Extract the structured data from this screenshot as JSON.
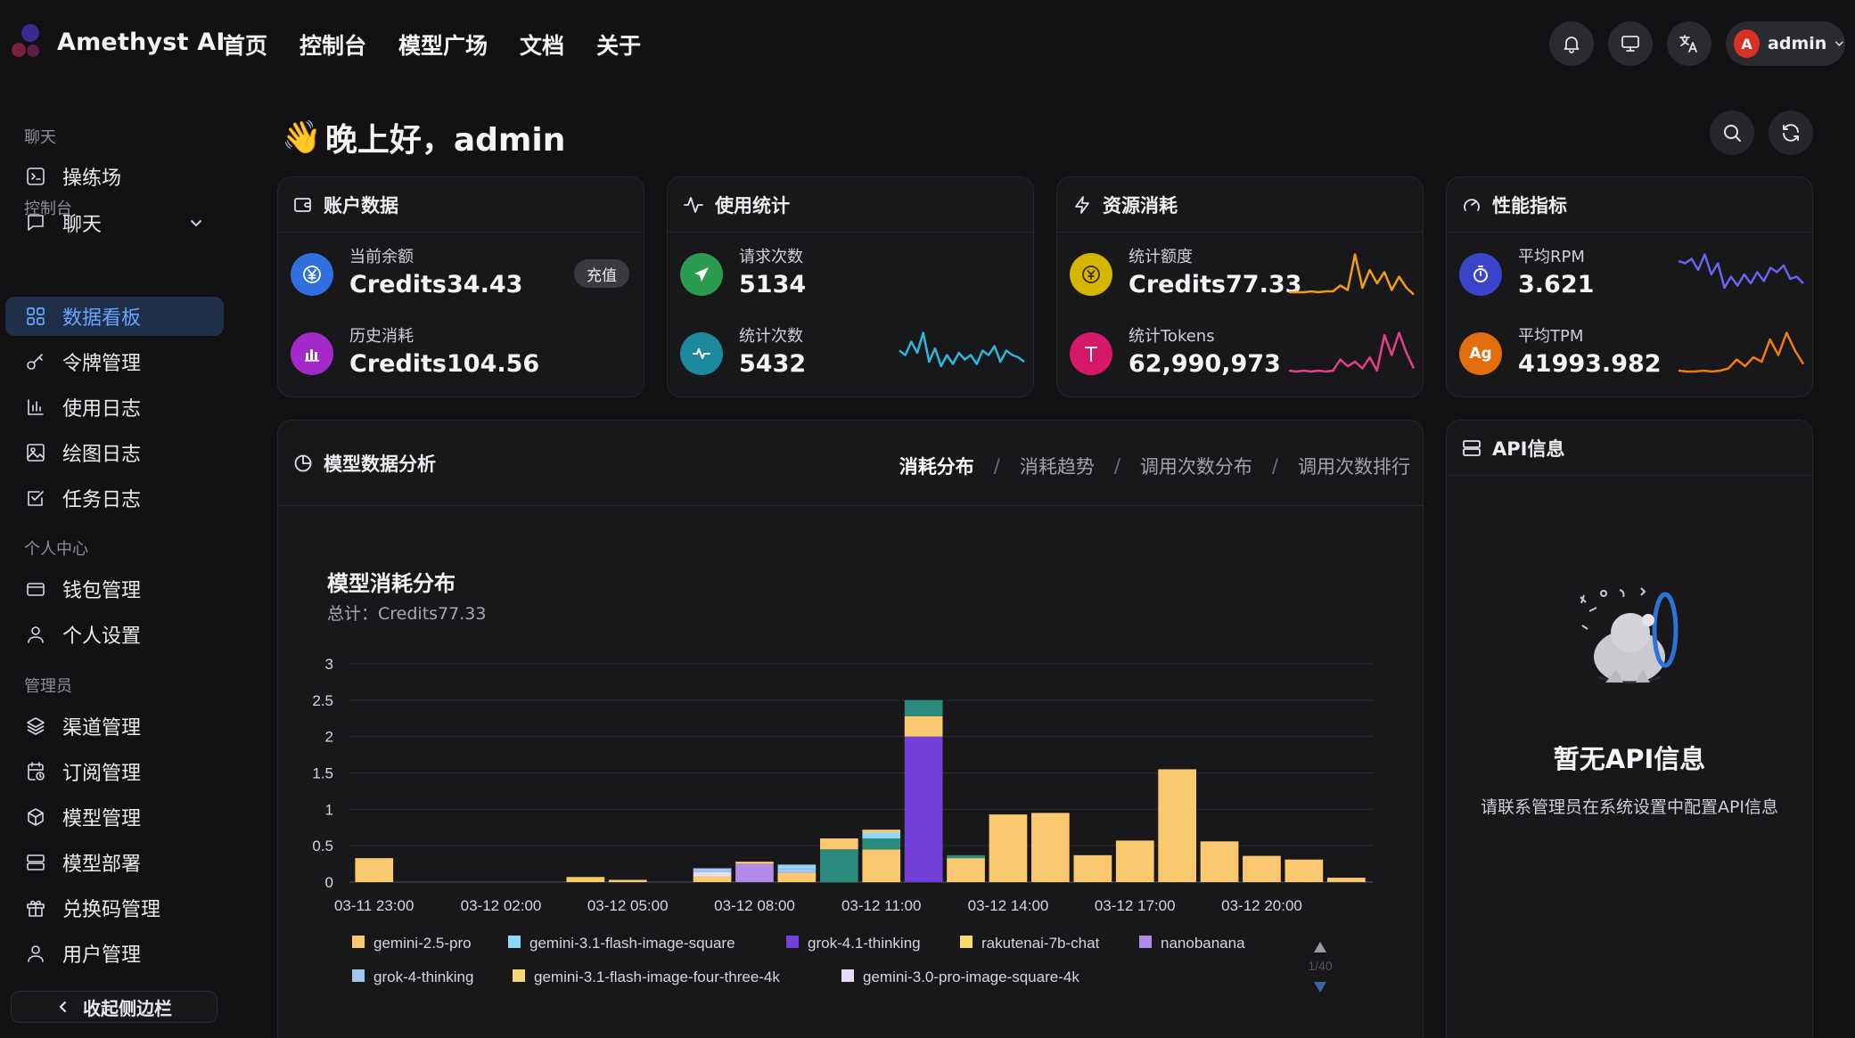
{
  "header": {
    "brand": "Amethyst AI",
    "nav": [
      "首页",
      "控制台",
      "模型广场",
      "文档",
      "关于"
    ],
    "user": {
      "avatar_letter": "A",
      "name": "admin"
    },
    "icons": [
      "bell-icon",
      "monitor-icon",
      "translate-icon"
    ]
  },
  "sidebar": {
    "sections": [
      "聊天",
      "控制台",
      "个人中心",
      "管理员"
    ],
    "items": [
      {
        "label": "操练场",
        "icon": "terminal-icon"
      },
      {
        "label": "聊天",
        "icon": "chat-icon"
      },
      {
        "label": "数据看板",
        "icon": "dashboard-icon",
        "active": true
      },
      {
        "label": "令牌管理",
        "icon": "key-icon"
      },
      {
        "label": "使用日志",
        "icon": "bar-chart-icon"
      },
      {
        "label": "绘图日志",
        "icon": "image-icon"
      },
      {
        "label": "任务日志",
        "icon": "checklist-icon"
      },
      {
        "label": "钱包管理",
        "icon": "wallet-icon"
      },
      {
        "label": "个人设置",
        "icon": "user-icon"
      },
      {
        "label": "渠道管理",
        "icon": "layers-icon"
      },
      {
        "label": "订阅管理",
        "icon": "calendar-clock-icon"
      },
      {
        "label": "模型管理",
        "icon": "cube-icon"
      },
      {
        "label": "模型部署",
        "icon": "server-icon"
      },
      {
        "label": "兑换码管理",
        "icon": "gift-icon"
      },
      {
        "label": "用户管理",
        "icon": "user-admin-icon"
      }
    ],
    "collapse_label": "收起侧边栏"
  },
  "greeting": {
    "emoji": "👋",
    "text": "晚上好，admin"
  },
  "cards": {
    "account": {
      "title": "账户数据",
      "balance_label": "当前余额",
      "balance_value": "Credits34.43",
      "recharge_label": "充值",
      "spent_label": "历史消耗",
      "spent_value": "Credits104.56"
    },
    "usage": {
      "title": "使用统计",
      "requests_label": "请求次数",
      "requests_value": "5134",
      "count_label": "统计次数",
      "count_value": "5432"
    },
    "resource": {
      "title": "资源消耗",
      "quota_label": "统计额度",
      "quota_value": "Credits77.33",
      "tokens_label": "统计Tokens",
      "tokens_value": "62,990,973"
    },
    "performance": {
      "title": "性能指标",
      "rpm_label": "平均RPM",
      "rpm_value": "3.621",
      "tpm_label": "平均TPM",
      "tpm_value": "41993.982"
    }
  },
  "sparklines": {
    "count": [
      0.55,
      0.45,
      0.75,
      0.5,
      0.95,
      0.3,
      0.6,
      0.2,
      0.45,
      0.25,
      0.5,
      0.35,
      0.45,
      0.25,
      0.55,
      0.45,
      0.65,
      0.3,
      0.55,
      0.45,
      0.4,
      0.3
    ],
    "quota": [
      0.1,
      0.1,
      0.1,
      0.12,
      0.1,
      0.12,
      0.12,
      0.25,
      0.15,
      0.95,
      0.2,
      0.6,
      0.3,
      0.55,
      0.15,
      0.45,
      0.2,
      0.05
    ],
    "tokens": [
      0.1,
      0.08,
      0.1,
      0.08,
      0.1,
      0.08,
      0.1,
      0.35,
      0.2,
      0.3,
      0.15,
      0.4,
      0.1,
      0.9,
      0.45,
      0.95,
      0.5,
      0.15
    ],
    "rpm": [
      0.8,
      0.75,
      0.85,
      0.6,
      0.95,
      0.5,
      0.75,
      0.2,
      0.45,
      0.25,
      0.5,
      0.3,
      0.55,
      0.35,
      0.65,
      0.55,
      0.7,
      0.4,
      0.45,
      0.3
    ],
    "tpm": [
      0.1,
      0.08,
      0.08,
      0.1,
      0.08,
      0.1,
      0.15,
      0.35,
      0.2,
      0.4,
      0.3,
      0.8,
      0.45,
      0.95,
      0.55,
      0.25
    ]
  },
  "analysis": {
    "title": "模型数据分析",
    "tabs": [
      {
        "label": "消耗分布",
        "active": true
      },
      {
        "label": "消耗趋势"
      },
      {
        "label": "调用次数分布"
      },
      {
        "label": "调用次数排行"
      }
    ],
    "chart_heading": "模型消耗分布",
    "chart_total": "总计：Credits77.33",
    "legend_page": "1/40"
  },
  "colors": {
    "accent": "#6aa5ff",
    "gemini_2_5_pro": "#f9c86f",
    "gemini_flash_square": "#8fd8f5",
    "grok_thinking": "#7340d8",
    "rakutenai": "#f7da6a",
    "nanobanana": "#b28be8",
    "grok_4": "#9fc5f5",
    "gemini_four_three": "#f5d672",
    "gemini_3_pro_square": "#e5dcf7",
    "teal": "#2a8a7d"
  },
  "chart_data": {
    "type": "bar",
    "title": "模型消耗分布",
    "xlabel": "",
    "ylabel": "",
    "ylim": [
      0,
      3
    ],
    "yticks": [
      "0",
      "0.5",
      "1",
      "1.5",
      "2",
      "2.5",
      "3"
    ],
    "xtick_labels": [
      "03-11 23:00",
      "03-12 02:00",
      "03-12 05:00",
      "03-12 08:00",
      "03-12 11:00",
      "03-12 14:00",
      "03-12 17:00",
      "03-12 20:00"
    ],
    "legend": [
      "gemini-2.5-pro",
      "gemini-3.1-flash-image-square",
      "grok-4.1-thinking",
      "rakutenai-7b-chat",
      "nanobanana",
      "grok-4-thinking",
      "gemini-3.1-flash-image-four-three-4k",
      "gemini-3.0-pro-image-square-4k"
    ],
    "bars": [
      {
        "time": "03-11 23:00",
        "segments": [
          {
            "series": "gemini-2.5-pro",
            "value": 0.33
          }
        ]
      },
      {
        "time": "03-12 00:00",
        "segments": []
      },
      {
        "time": "03-12 01:00",
        "segments": []
      },
      {
        "time": "03-12 02:00",
        "segments": []
      },
      {
        "time": "03-12 03:00",
        "segments": []
      },
      {
        "time": "03-12 04:00",
        "segments": [
          {
            "series": "gemini-2.5-pro",
            "value": 0.07
          }
        ]
      },
      {
        "time": "03-12 05:00",
        "segments": [
          {
            "series": "gemini-2.5-pro",
            "value": 0.03
          }
        ]
      },
      {
        "time": "03-12 06:00",
        "segments": []
      },
      {
        "time": "03-12 07:00",
        "segments": [
          {
            "series": "gemini-2.5-pro",
            "value": 0.08
          },
          {
            "series": "gemini-3.0-pro-image-square-4k",
            "value": 0.06
          },
          {
            "series": "grok-4-thinking",
            "value": 0.05
          }
        ]
      },
      {
        "time": "03-12 08:00",
        "segments": [
          {
            "series": "nanobanana",
            "value": 0.25
          },
          {
            "series": "gemini-2.5-pro",
            "value": 0.03
          }
        ]
      },
      {
        "time": "03-12 09:00",
        "segments": [
          {
            "series": "gemini-2.5-pro",
            "value": 0.13
          },
          {
            "series": "grok-4-thinking",
            "value": 0.05
          },
          {
            "series": "gemini-3.1-flash-image-square",
            "value": 0.06
          }
        ]
      },
      {
        "time": "03-12 10:00",
        "segments": [
          {
            "series": "other",
            "value": 0.45
          },
          {
            "series": "gemini-2.5-pro",
            "value": 0.15
          }
        ]
      },
      {
        "time": "03-12 11:00",
        "segments": [
          {
            "series": "gemini-2.5-pro",
            "value": 0.45
          },
          {
            "series": "other",
            "value": 0.15
          },
          {
            "series": "gemini-3.1-flash-image-square",
            "value": 0.08
          },
          {
            "series": "gemini-2.5-pro",
            "value": 0.04
          }
        ]
      },
      {
        "time": "03-12 12:00",
        "segments": [
          {
            "series": "grok-4.1-thinking",
            "value": 2.0
          },
          {
            "series": "gemini-2.5-pro",
            "value": 0.28
          },
          {
            "series": "other",
            "value": 0.22
          }
        ]
      },
      {
        "time": "03-12 13:00",
        "segments": [
          {
            "series": "gemini-2.5-pro",
            "value": 0.33
          },
          {
            "series": "other",
            "value": 0.04
          }
        ]
      },
      {
        "time": "03-12 14:00",
        "segments": [
          {
            "series": "gemini-2.5-pro",
            "value": 0.93
          }
        ]
      },
      {
        "time": "03-12 15:00",
        "segments": [
          {
            "series": "gemini-2.5-pro",
            "value": 0.95
          }
        ]
      },
      {
        "time": "03-12 16:00",
        "segments": [
          {
            "series": "gemini-2.5-pro",
            "value": 0.37
          }
        ]
      },
      {
        "time": "03-12 17:00",
        "segments": [
          {
            "series": "gemini-2.5-pro",
            "value": 0.57
          }
        ]
      },
      {
        "time": "03-12 18:00",
        "segments": [
          {
            "series": "gemini-2.5-pro",
            "value": 1.55
          }
        ]
      },
      {
        "time": "03-12 19:00",
        "segments": [
          {
            "series": "gemini-2.5-pro",
            "value": 0.56
          }
        ]
      },
      {
        "time": "03-12 20:00",
        "segments": [
          {
            "series": "gemini-2.5-pro",
            "value": 0.36
          }
        ]
      },
      {
        "time": "03-12 21:00",
        "segments": [
          {
            "series": "gemini-2.5-pro",
            "value": 0.31
          }
        ]
      },
      {
        "time": "03-12 22:00",
        "segments": [
          {
            "series": "gemini-2.5-pro",
            "value": 0.06
          }
        ]
      }
    ]
  },
  "api_info": {
    "title": "API信息",
    "empty_title": "暂无API信息",
    "empty_desc": "请联系管理员在系统设置中配置API信息"
  }
}
